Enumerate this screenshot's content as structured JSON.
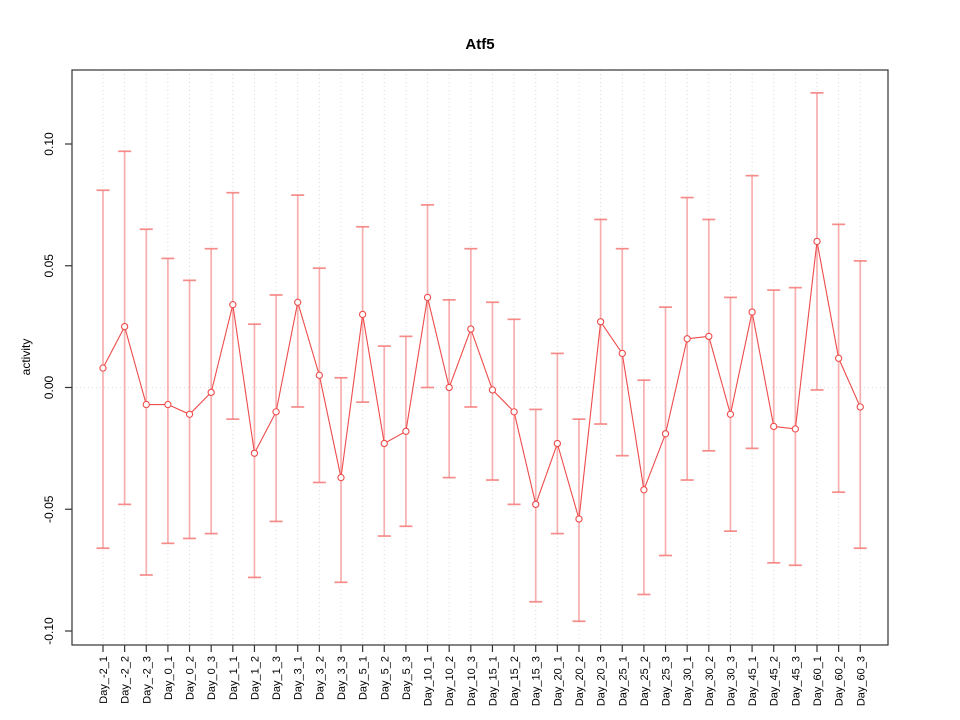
{
  "title": "Atf5",
  "chart_data": {
    "type": "line",
    "title": "Atf5",
    "xlabel": "",
    "ylabel": "activity",
    "ylim": [
      -0.105,
      0.125
    ],
    "yticks": [
      -0.1,
      -0.05,
      0.0,
      0.05,
      0.1
    ],
    "ytick_labels": [
      "-0.10",
      "-0.05",
      "0.00",
      "0.05",
      "0.10"
    ],
    "grid": "vertical dotted gridline at every category; dotted horizontal line at y=0; full box frame; no legend",
    "legend_position": "none",
    "marker": "open-circle",
    "error_bars": true,
    "categories": [
      "Day_-2_1",
      "Day_-2_2",
      "Day_-2_3",
      "Day_0_1",
      "Day_0_2",
      "Day_0_3",
      "Day_1_1",
      "Day_1_2",
      "Day_1_3",
      "Day_3_1",
      "Day_3_2",
      "Day_3_3",
      "Day_5_1",
      "Day_5_2",
      "Day_5_3",
      "Day_10_1",
      "Day_10_2",
      "Day_10_3",
      "Day_15_1",
      "Day_15_2",
      "Day_15_3",
      "Day_20_1",
      "Day_20_2",
      "Day_20_3",
      "Day_25_1",
      "Day_25_2",
      "Day_25_3",
      "Day_30_1",
      "Day_30_2",
      "Day_30_3",
      "Day_45_1",
      "Day_45_2",
      "Day_45_3",
      "Day_60_1",
      "Day_60_2",
      "Day_60_3"
    ],
    "series": [
      {
        "name": "activity",
        "values": [
          0.008,
          0.025,
          -0.007,
          -0.007,
          -0.011,
          -0.002,
          0.034,
          -0.027,
          -0.01,
          0.035,
          0.005,
          -0.037,
          0.03,
          -0.023,
          -0.018,
          0.037,
          0.0,
          0.024,
          -0.001,
          -0.01,
          -0.048,
          -0.023,
          -0.054,
          0.027,
          0.014,
          -0.042,
          -0.019,
          0.02,
          0.021,
          -0.011,
          0.031,
          -0.016,
          -0.017,
          0.06,
          0.012,
          -0.008
        ],
        "error_high": [
          0.081,
          0.097,
          0.065,
          0.053,
          0.044,
          0.057,
          0.08,
          0.026,
          0.038,
          0.079,
          0.049,
          0.004,
          0.066,
          0.017,
          0.021,
          0.075,
          0.036,
          0.057,
          0.035,
          0.028,
          -0.009,
          0.014,
          -0.013,
          0.069,
          0.057,
          0.003,
          0.033,
          0.078,
          0.069,
          0.037,
          0.087,
          0.04,
          0.041,
          0.121,
          0.067,
          0.052
        ],
        "error_low": [
          -0.066,
          -0.048,
          -0.077,
          -0.064,
          -0.062,
          -0.06,
          -0.013,
          -0.078,
          -0.055,
          -0.008,
          -0.039,
          -0.08,
          -0.006,
          -0.061,
          -0.057,
          0.0,
          -0.037,
          -0.008,
          -0.038,
          -0.048,
          -0.088,
          -0.06,
          -0.096,
          -0.015,
          -0.028,
          -0.085,
          -0.069,
          -0.038,
          -0.026,
          -0.059,
          -0.025,
          -0.072,
          -0.073,
          -0.001,
          -0.043,
          -0.066
        ]
      }
    ],
    "colors": {
      "line": "#EE4B4B",
      "marker_stroke": "#EE4B4B",
      "marker_fill": "#FFFFFF",
      "error_bar": "#F69C9C",
      "error_cap": "#F4807D",
      "gridline": "#D8D8D8",
      "zero_line": "#DEDEDE",
      "frame": "#333333",
      "text": "#000000"
    }
  }
}
